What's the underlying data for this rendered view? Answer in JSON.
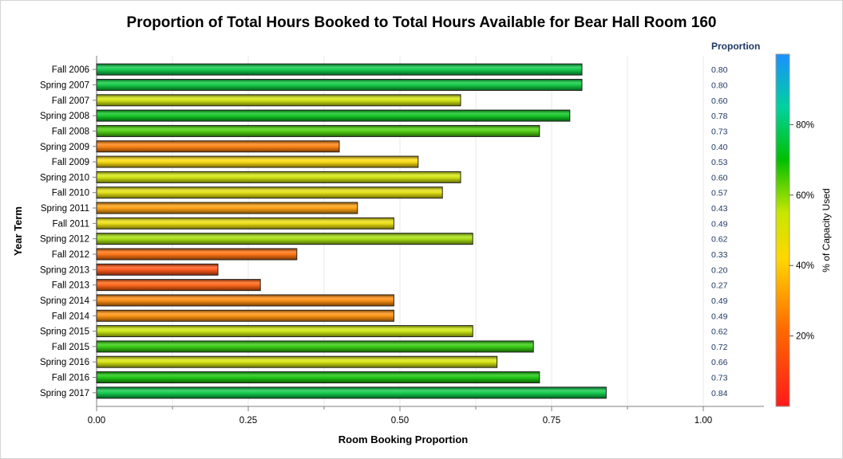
{
  "chart_data": {
    "type": "bar",
    "orientation": "horizontal",
    "title": "Proportion of Total Hours Booked to Total Hours Available for Bear Hall Room 160",
    "xlabel": "Room Booking Proportion",
    "ylabel": "Year Term",
    "xlim": [
      0,
      1.1
    ],
    "xticks": [
      "0.00",
      "0.25",
      "0.50",
      "0.75",
      "1.00"
    ],
    "xtick_values": [
      0,
      0.25,
      0.5,
      0.75,
      1.0
    ],
    "grid": true,
    "value_column_header": "Proportion",
    "categories": [
      "Fall 2006",
      "Spring 2007",
      "Fall 2007",
      "Spring 2008",
      "Fall 2008",
      "Spring 2009",
      "Fall 2009",
      "Spring 2010",
      "Fall 2010",
      "Spring 2011",
      "Fall 2011",
      "Spring 2012",
      "Fall 2012",
      "Spring 2013",
      "Fall 2013",
      "Spring 2014",
      "Fall 2014",
      "Spring 2015",
      "Fall 2015",
      "Spring 2016",
      "Fall 2016",
      "Spring 2017"
    ],
    "values": [
      0.8,
      0.8,
      0.6,
      0.78,
      0.73,
      0.4,
      0.53,
      0.6,
      0.57,
      0.43,
      0.49,
      0.62,
      0.33,
      0.2,
      0.27,
      0.49,
      0.49,
      0.62,
      0.72,
      0.66,
      0.73,
      0.84
    ],
    "value_labels": [
      "0.80",
      "0.80",
      "0.60",
      "0.78",
      "0.73",
      "0.40",
      "0.53",
      "0.60",
      "0.57",
      "0.43",
      "0.49",
      "0.62",
      "0.33",
      "0.20",
      "0.27",
      "0.49",
      "0.49",
      "0.62",
      "0.72",
      "0.66",
      "0.73",
      "0.84"
    ],
    "color_response": [
      76,
      75,
      53,
      72,
      65,
      25,
      43,
      53,
      49,
      31,
      47,
      58,
      22,
      14,
      18,
      27,
      28,
      55,
      67,
      52,
      69,
      76
    ],
    "colorbar": {
      "label": "% of Capacity Used",
      "range": [
        0,
        100
      ],
      "tick_values": [
        20,
        40,
        60,
        80
      ],
      "ticks": [
        "20%",
        "40%",
        "60%",
        "80%"
      ],
      "stops": [
        {
          "offset": 0,
          "color": "#ff1a1a"
        },
        {
          "offset": 0.22,
          "color": "#ff6a00"
        },
        {
          "offset": 0.42,
          "color": "#ffd700"
        },
        {
          "offset": 0.55,
          "color": "#c8e600"
        },
        {
          "offset": 0.7,
          "color": "#00c000"
        },
        {
          "offset": 0.85,
          "color": "#00d2a0"
        },
        {
          "offset": 1,
          "color": "#1a90ff"
        }
      ]
    },
    "colors": {
      "value_label": "#1f3864",
      "axis": "#808080",
      "grid": "#e8e8e8",
      "text": "#000000",
      "bar_outline": "#222222"
    }
  }
}
